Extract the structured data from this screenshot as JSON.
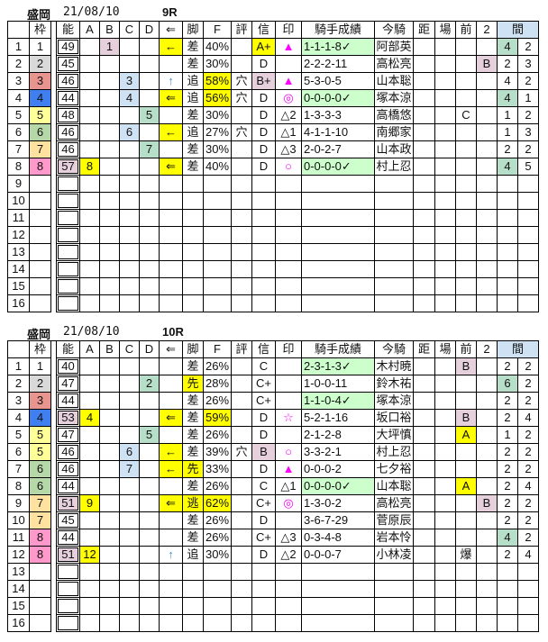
{
  "palette": {
    "yellow": "#ffff00",
    "pink": "#e6d0dc",
    "blue": "#cfe2f3",
    "teal": "#b7dec8",
    "green": "#ccffcc",
    "w1": "#ffffff",
    "w2": "#d9d9d9",
    "w3": "#e8958f",
    "w4": "#3f7fef",
    "w5": "#ffff99",
    "w6": "#b6d7a8",
    "w7": "#ffe29f",
    "w8": "#ff99cc",
    "header_kan": "#cfe2f3",
    "mark": "#ff00ff",
    "arrow_up": "#4a90d9"
  },
  "headers": [
    "",
    "枠",
    "",
    "能",
    "A",
    "B",
    "C",
    "D",
    "⇐",
    "脚",
    "F",
    "評",
    "信",
    "印",
    "騎手成績",
    "今騎",
    "距",
    "場",
    "前",
    "2",
    "間"
  ],
  "races": [
    {
      "venue": "盛岡",
      "date": "21/08/10",
      "race": "9R",
      "rows": [
        {
          "c": [
            "1",
            "1",
            "49",
            "",
            "1",
            "",
            "",
            "←",
            "差",
            "40%",
            "",
            "A+",
            "▲",
            "1-1-1-8✓",
            "阿部英",
            "",
            "",
            "",
            "",
            "4",
            "2"
          ],
          "hl": {
            "4": "pink",
            "7": "yellow",
            "11": "yellow",
            "13": "green",
            "19": "teal"
          }
        },
        {
          "c": [
            "2",
            "2",
            "45",
            "",
            "",
            "",
            "",
            "",
            "差",
            "30%",
            "",
            "D",
            "",
            "2-2-2-11",
            "高松亮",
            "",
            "",
            "",
            "B",
            "2",
            "3"
          ],
          "hl": {
            "18": "pink"
          }
        },
        {
          "c": [
            "3",
            "3",
            "46",
            "",
            "",
            "3",
            "",
            "↑",
            "追",
            "58%",
            "穴",
            "B+",
            "▲",
            "5-3-0-5",
            "山本聡",
            "",
            "",
            "",
            "",
            "4",
            "2"
          ],
          "hl": {
            "5": "blue",
            "9": "yellow",
            "11": "pink"
          }
        },
        {
          "c": [
            "4",
            "4",
            "44",
            "",
            "",
            "4",
            "",
            "⇐",
            "追",
            "56%",
            "穴",
            "D",
            "◎",
            "0-0-0-0✓",
            "塚本涼",
            "",
            "",
            "",
            "",
            "4",
            "1"
          ],
          "hl": {
            "5": "blue",
            "7": "yellow",
            "9": "yellow",
            "13": "green",
            "19": "teal"
          }
        },
        {
          "c": [
            "5",
            "5",
            "48",
            "",
            "",
            "",
            "5",
            "",
            "差",
            "30%",
            "",
            "D",
            "△2",
            "1-3-3-3",
            "高橋悠",
            "",
            "",
            "C",
            "",
            "1",
            "2"
          ],
          "hl": {
            "6": "teal"
          }
        },
        {
          "c": [
            "6",
            "6",
            "46",
            "",
            "",
            "6",
            "",
            "←",
            "追",
            "27%",
            "穴",
            "D",
            "△1",
            "4-1-1-10",
            "南郷家",
            "",
            "",
            "",
            "",
            "1",
            "3"
          ],
          "hl": {
            "5": "blue",
            "7": "yellow"
          }
        },
        {
          "c": [
            "7",
            "7",
            "46",
            "",
            "",
            "",
            "7",
            "",
            "差",
            "30%",
            "",
            "D",
            "△3",
            "2-0-2-7",
            "山本政",
            "",
            "",
            "",
            "",
            "2",
            "2"
          ],
          "hl": {
            "6": "teal"
          }
        },
        {
          "c": [
            "8",
            "8",
            "57",
            "8",
            "",
            "",
            "",
            "⇐",
            "差",
            "40%",
            "",
            "D",
            "○",
            "0-0-0-0✓",
            "村上忍",
            "",
            "",
            "",
            "",
            "4",
            "5"
          ],
          "hl": {
            "2": "pink",
            "3": "yellow",
            "7": "yellow",
            "13": "green",
            "19": "teal"
          }
        },
        {
          "c": [
            "9"
          ]
        },
        {
          "c": [
            "10"
          ]
        },
        {
          "c": [
            "11"
          ]
        },
        {
          "c": [
            "12"
          ]
        },
        {
          "c": [
            "13"
          ]
        },
        {
          "c": [
            "14"
          ]
        },
        {
          "c": [
            "15"
          ]
        },
        {
          "c": [
            "16"
          ]
        }
      ]
    },
    {
      "venue": "盛岡",
      "date": "21/08/10",
      "race": "10R",
      "rows": [
        {
          "c": [
            "1",
            "1",
            "40",
            "",
            "",
            "",
            "",
            "",
            "差",
            "26%",
            "",
            "C",
            "",
            "2-3-1-3✓",
            "木村暁",
            "",
            "",
            "B",
            "",
            "2",
            "2"
          ],
          "hl": {
            "13": "green",
            "17": "pink"
          }
        },
        {
          "c": [
            "2",
            "2",
            "47",
            "",
            "",
            "",
            "2",
            "",
            "先",
            "28%",
            "",
            "C+",
            "",
            "1-0-0-11",
            "鈴木祐",
            "",
            "",
            "",
            "",
            "6",
            "2"
          ],
          "hl": {
            "6": "teal",
            "8": "yellow",
            "19": "teal"
          }
        },
        {
          "c": [
            "3",
            "3",
            "44",
            "",
            "",
            "",
            "",
            "",
            "差",
            "26%",
            "",
            "C+",
            "",
            "1-1-0-4✓",
            "塚本涼",
            "",
            "",
            "",
            "",
            "2",
            "2"
          ],
          "hl": {
            "13": "green"
          }
        },
        {
          "c": [
            "4",
            "4",
            "53",
            "4",
            "",
            "",
            "",
            "⇐",
            "差",
            "59%",
            "",
            "D",
            "☆",
            "5-2-1-16",
            "坂口裕",
            "",
            "",
            "B",
            "",
            "2",
            "4"
          ],
          "hl": {
            "2": "pink",
            "3": "yellow",
            "7": "yellow",
            "9": "yellow",
            "17": "pink"
          }
        },
        {
          "c": [
            "5",
            "5",
            "47",
            "",
            "",
            "",
            "5",
            "",
            "差",
            "26%",
            "",
            "D",
            "",
            "2-1-2-8",
            "大坪慎",
            "",
            "",
            "A",
            "",
            "1",
            "2"
          ],
          "hl": {
            "6": "teal",
            "17": "yellow"
          }
        },
        {
          "c": [
            "6",
            "5",
            "46",
            "",
            "",
            "6",
            "",
            "←",
            "差",
            "39%",
            "穴",
            "B",
            "○",
            "3-3-2-1",
            "村上忍",
            "",
            "",
            "",
            "",
            "2",
            "2"
          ],
          "hl": {
            "5": "blue",
            "7": "yellow",
            "11": "pink"
          }
        },
        {
          "c": [
            "7",
            "6",
            "46",
            "",
            "",
            "7",
            "",
            "←",
            "先",
            "33%",
            "",
            "D",
            "▲",
            "0-0-0-2",
            "七夕裕",
            "",
            "",
            "",
            "",
            "2",
            "2"
          ],
          "hl": {
            "5": "blue",
            "7": "yellow",
            "8": "yellow"
          }
        },
        {
          "c": [
            "8",
            "6",
            "44",
            "",
            "",
            "",
            "",
            "",
            "差",
            "26%",
            "",
            "C",
            "△1",
            "0-0-0-0✓",
            "山本聡",
            "",
            "",
            "A",
            "",
            "2",
            "4"
          ],
          "hl": {
            "13": "green",
            "17": "yellow"
          }
        },
        {
          "c": [
            "9",
            "7",
            "51",
            "9",
            "",
            "",
            "",
            "⇐",
            "逃",
            "62%",
            "",
            "C+",
            "◎",
            "1-3-0-2",
            "高松亮",
            "",
            "",
            "",
            "B",
            "2",
            "2"
          ],
          "hl": {
            "2": "pink",
            "3": "yellow",
            "7": "yellow",
            "8": "yellow",
            "9": "yellow",
            "18": "pink"
          }
        },
        {
          "c": [
            "10",
            "7",
            "45",
            "",
            "",
            "",
            "",
            "",
            "差",
            "26%",
            "",
            "D",
            "",
            "3-6-7-29",
            "菅原辰",
            "",
            "",
            "",
            "",
            "2",
            "2"
          ]
        },
        {
          "c": [
            "11",
            "8",
            "44",
            "",
            "",
            "",
            "",
            "",
            "差",
            "26%",
            "",
            "C+",
            "△3",
            "0-3-4-8",
            "岩本怜",
            "",
            "",
            "",
            "",
            "4",
            "2"
          ],
          "hl": {
            "19": "teal"
          }
        },
        {
          "c": [
            "12",
            "8",
            "51",
            "12",
            "",
            "",
            "",
            "↑",
            "追",
            "30%",
            "",
            "D",
            "△2",
            "0-0-0-7",
            "小林凌",
            "",
            "",
            "爆",
            "",
            "2",
            "4"
          ],
          "hl": {
            "2": "pink",
            "3": "yellow"
          }
        },
        {
          "c": [
            "13"
          ]
        },
        {
          "c": [
            "14"
          ]
        },
        {
          "c": [
            "15"
          ]
        },
        {
          "c": [
            "16"
          ]
        }
      ]
    }
  ]
}
